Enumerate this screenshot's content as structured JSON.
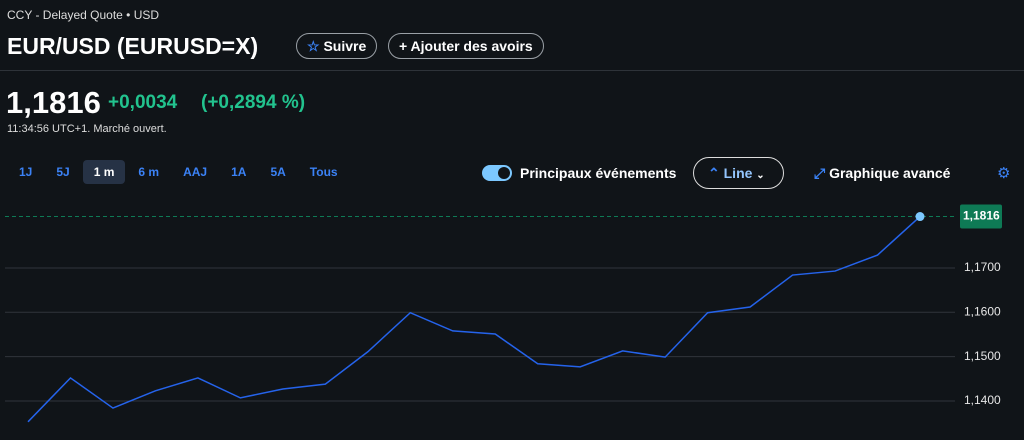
{
  "header": {
    "source": "CCY - Delayed Quote • USD",
    "title": "EUR/USD (EURUSD=X)",
    "follow": "Suivre",
    "add_holdings": "Ajouter des avoirs"
  },
  "quote": {
    "price": "1,1816",
    "change": "+0,0034",
    "change_pct": "(+0,2894 %)",
    "status": "11:34:56 UTC+1. Marché ouvert."
  },
  "toolbar": {
    "ranges": [
      "1J",
      "5J",
      "1 m",
      "6 m",
      "AAJ",
      "1A",
      "5A",
      "Tous"
    ],
    "selected": 2,
    "events": "Principaux événements",
    "chart_style": "Line",
    "advanced": "Graphique avancé"
  },
  "chart_data": {
    "type": "line",
    "series": [
      {
        "color": "#2563eb",
        "values": [
          1.1353,
          1.1452,
          1.1384,
          1.1423,
          1.1452,
          1.1407,
          1.1427,
          1.1438,
          1.1511,
          1.1599,
          1.1558,
          1.1551,
          1.1484,
          1.1477,
          1.1513,
          1.1499,
          1.1599,
          1.1612,
          1.1684,
          1.1693,
          1.1729,
          1.1816
        ]
      }
    ],
    "ylim": [
      1.1312,
      1.1842
    ],
    "yticks": [
      {
        "value": 1.14,
        "label": "1,1400"
      },
      {
        "value": 1.15,
        "label": "1,1500"
      },
      {
        "value": 1.16,
        "label": "1,1600"
      },
      {
        "value": 1.17,
        "label": "1,1700"
      }
    ],
    "grid": true,
    "reference_line": {
      "value": 1.1816,
      "label": "1,1816",
      "color": "#0e7a55"
    }
  }
}
